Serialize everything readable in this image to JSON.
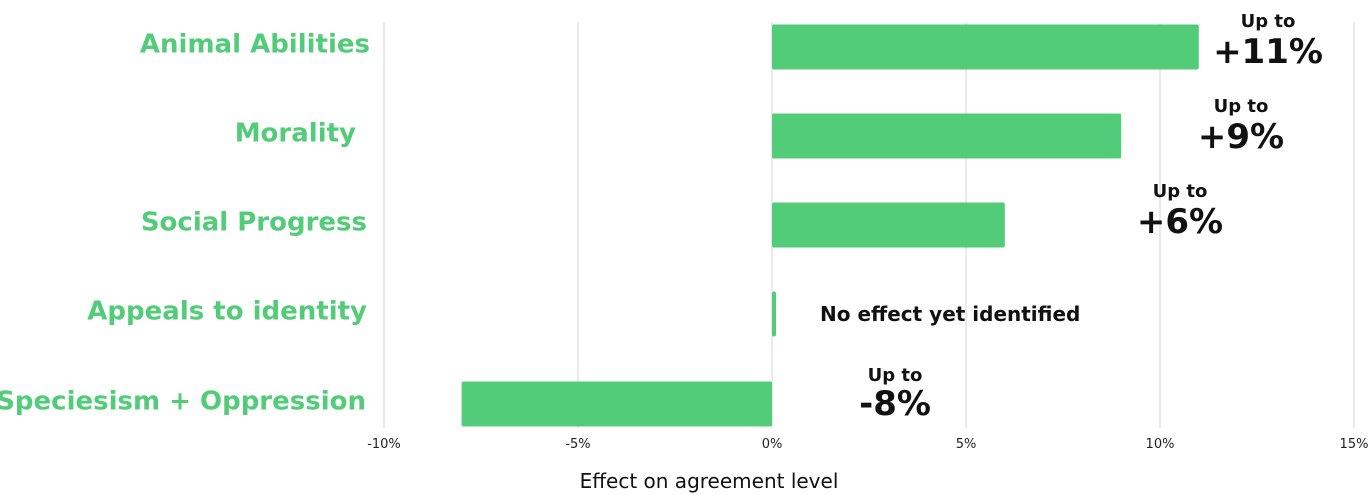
{
  "chart_data": {
    "type": "bar",
    "orientation": "horizontal",
    "categories": [
      "Animal Abilities",
      "Morality",
      "Social Progress",
      "Appeals to identity",
      "Speciesism + Oppression"
    ],
    "values": [
      11,
      9,
      6,
      0.1,
      -8
    ],
    "xlabel": "Effect on agreement level",
    "xlim": [
      -10,
      15
    ],
    "x_ticks": [
      "-10%",
      "-5%",
      "0%",
      "5%",
      "10%",
      "15%"
    ],
    "x_tick_values": [
      -10,
      -5,
      0,
      5,
      10,
      15
    ],
    "grid": "vertical",
    "bar_color": "#52cc78",
    "label_color": "#52cc78",
    "annotations": [
      {
        "category": "Animal Abilities",
        "prefix": "Up to",
        "value": "+11%"
      },
      {
        "category": "Morality",
        "prefix": "Up to",
        "value": "+9%"
      },
      {
        "category": "Social Progress",
        "prefix": "Up to",
        "value": "+6%"
      },
      {
        "category": "Appeals to identity",
        "prefix": "",
        "value": "No effect yet identified"
      },
      {
        "category": "Speciesism + Oppression",
        "prefix": "Up to",
        "value": "-8%"
      }
    ]
  }
}
